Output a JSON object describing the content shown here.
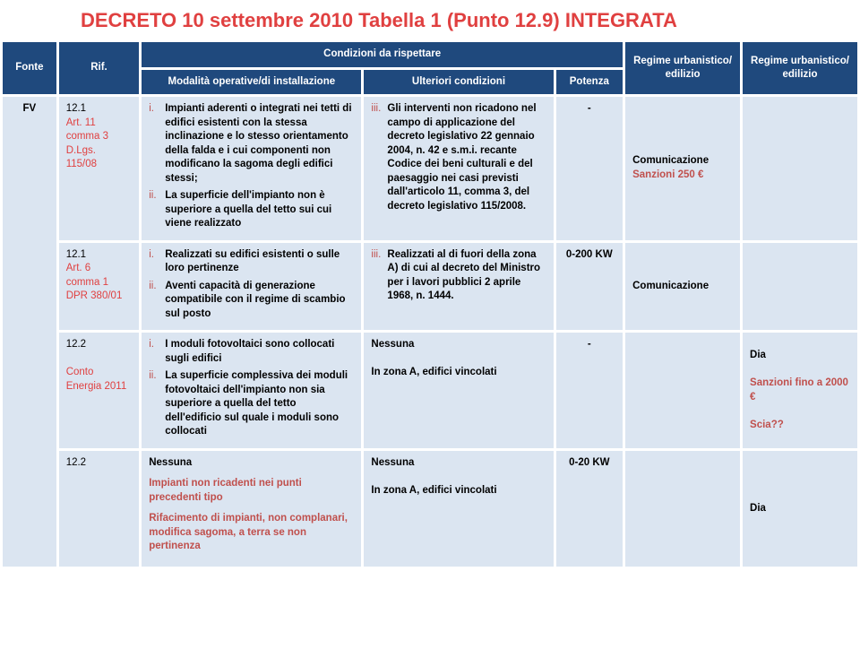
{
  "title": "DECRETO 10 settembre 2010 Tabella 1 (Punto 12.9) INTEGRATA",
  "colors": {
    "header_bg": "#1f497d",
    "header_fg": "#ffffff",
    "body_bg": "#dbe5f1",
    "title_red": "#e04040",
    "accent_red": "#c0504d"
  },
  "header": {
    "fonte": "Fonte",
    "rif": "Rif.",
    "condizioni": "Condizioni da rispettare",
    "modalita": "Modalità operative/di installazione",
    "ulteriori": "Ulteriori condizioni",
    "potenza": "Potenza",
    "regime1": "Regime urbanistico/ edilizio",
    "regime2": "Regime urbanistico/ edilizio"
  },
  "fonte_label": "FV",
  "rows": [
    {
      "rif_lines": [
        "12.1",
        "Art. 11",
        "comma 3",
        "D.Lgs.",
        "115/08"
      ],
      "rif_highlight_from": 1,
      "modalita": [
        "Impianti aderenti o integrati nei tetti di edifici esistenti con la stessa inclinazione e lo stesso orientamento della falda e i cui componenti non modificano la sagoma degli edifici stessi;",
        "La superficie dell'impianto non è superiore a quella del tetto sui cui viene realizzato"
      ],
      "ulteriori": [
        "Gli interventi non ricadono nel campo di applicazione del decreto legislativo 22 gennaio 2004, n. 42 e s.m.i. recante Codice dei beni culturali e del paesaggio nei casi previsti dall'articolo 11, comma 3, del decreto legislativo 115/2008."
      ],
      "ulteriori_start": 3,
      "potenza": "-",
      "regime1_lines": [
        "Comunicazione",
        "Sanzioni 250 €"
      ],
      "regime1_red_from": 1,
      "regime2_lines": []
    },
    {
      "rif_lines": [
        "12.1",
        "Art. 6",
        "comma 1",
        "DPR 380/01"
      ],
      "rif_highlight_from": 1,
      "modalita": [
        "Realizzati su edifici esistenti o sulle loro pertinenze",
        "Aventi capacità di generazione compatibile con il regime di scambio sul posto"
      ],
      "ulteriori": [
        "Realizzati al di fuori della zona A) di cui al decreto del Ministro per i lavori pubblici 2 aprile 1968, n. 1444."
      ],
      "ulteriori_start": 3,
      "potenza": "0-200 KW",
      "regime1_lines": [
        "Comunicazione"
      ],
      "regime1_red_from": 99,
      "regime2_lines": []
    },
    {
      "rif_lines": [
        "12.2",
        "",
        "Conto",
        "Energia 2011"
      ],
      "rif_highlight_from": 2,
      "modalita": [
        "I moduli fotovoltaici sono collocati sugli edifici",
        "La superficie complessiva dei moduli fotovoltaici dell'impianto non sia superiore a quella del tetto dell'edificio sul quale i moduli sono collocati"
      ],
      "ulteriori_plain": [
        "Nessuna",
        "",
        "In zona A, edifici vincolati"
      ],
      "potenza": "-",
      "regime1_lines": [],
      "regime2_lines": [
        "Dia",
        "",
        "Sanzioni fino a 2000 €",
        "",
        "Scia??"
      ],
      "regime2_red_from": 2
    },
    {
      "rif_lines": [
        "12.2"
      ],
      "rif_highlight_from": 99,
      "modalita_heading": "Nessuna",
      "modalita_red_blocks": [
        "Impianti non ricadenti nei punti precedenti tipo",
        "Rifacimento di impianti, non complanari, modifica sagoma, a terra se non pertinenza"
      ],
      "ulteriori_plain": [
        "Nessuna",
        "",
        "In zona A, edifici vincolati"
      ],
      "potenza": "0-20 KW",
      "regime1_lines": [],
      "regime2_lines": [
        "Dia"
      ],
      "regime2_red_from": 99
    }
  ]
}
